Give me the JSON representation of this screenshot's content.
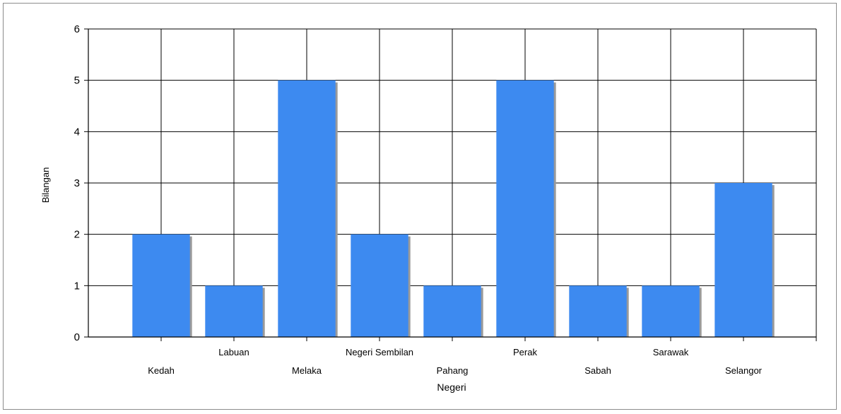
{
  "chart_data": {
    "type": "bar",
    "title": "",
    "xlabel": "Negeri",
    "ylabel": "Bilangan",
    "categories": [
      "Kedah",
      "Labuan",
      "Melaka",
      "Negeri Sembilan",
      "Pahang",
      "Perak",
      "Sabah",
      "Sarawak",
      "Selangor"
    ],
    "values": [
      2,
      1,
      5,
      2,
      1,
      5,
      1,
      1,
      3
    ],
    "ylim": [
      0,
      6
    ],
    "yticks": [
      "0",
      "1",
      "2",
      "3",
      "4",
      "5",
      "6"
    ],
    "grid": true,
    "legend": "none",
    "colors": {
      "bar": "#3d8af0",
      "bar_shadow": "#9a9a9a",
      "grid": "#000000",
      "axis": "#000000",
      "frame": "#8c8c8c"
    }
  }
}
